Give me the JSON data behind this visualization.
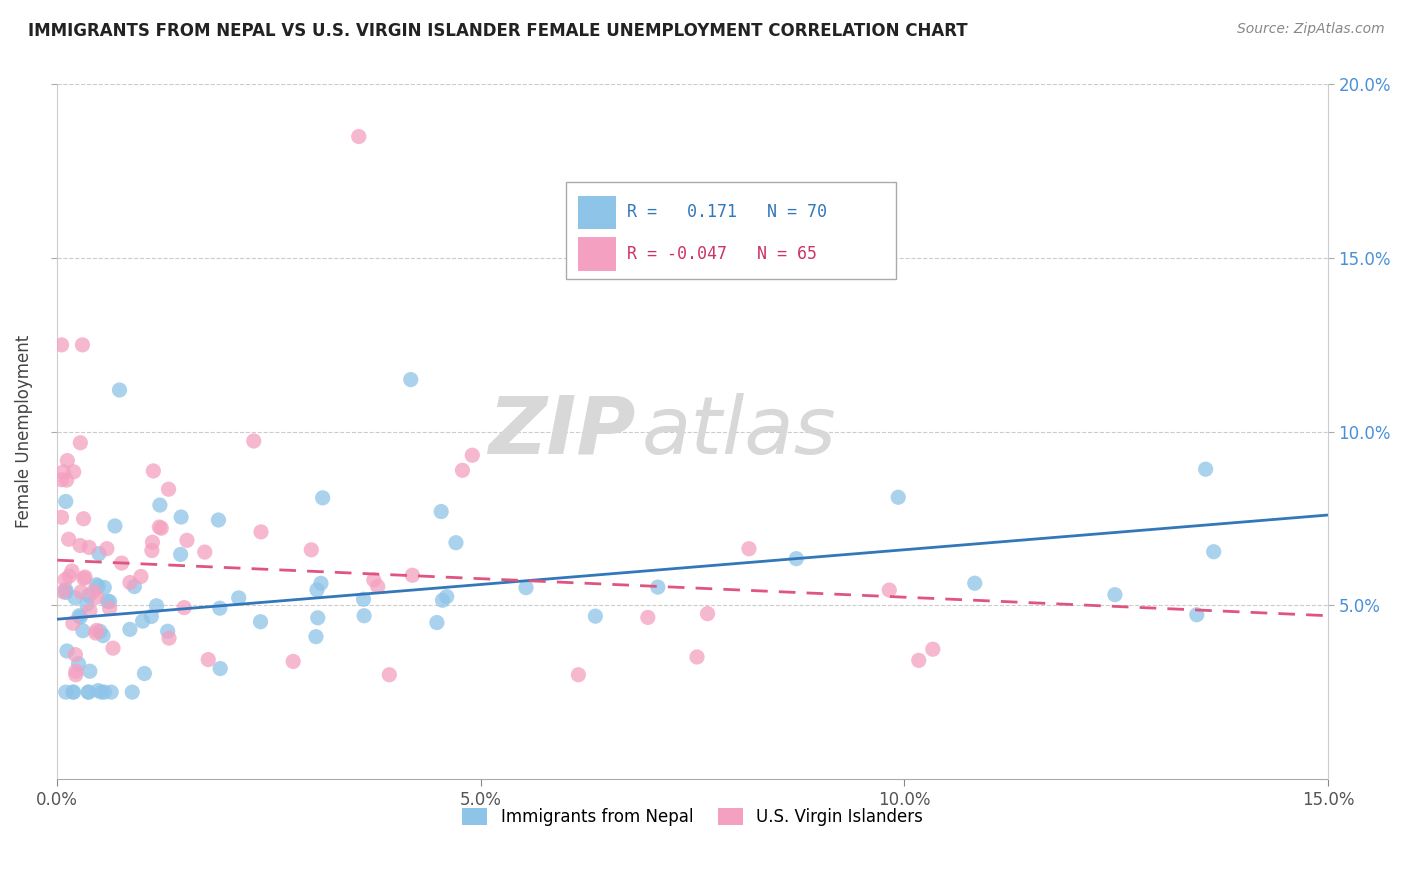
{
  "title": "IMMIGRANTS FROM NEPAL VS U.S. VIRGIN ISLANDER FEMALE UNEMPLOYMENT CORRELATION CHART",
  "source": "Source: ZipAtlas.com",
  "ylabel": "Female Unemployment",
  "series1_label": "Immigrants from Nepal",
  "series2_label": "U.S. Virgin Islanders",
  "series1_color": "#8ec4e8",
  "series2_color": "#f4a0c0",
  "series1_line_color": "#3377bb",
  "series2_line_color": "#e05580",
  "r1": 0.171,
  "n1": 70,
  "r2": -0.047,
  "n2": 65,
  "xlim": [
    0.0,
    0.15
  ],
  "ylim": [
    0.0,
    0.2
  ],
  "xticks": [
    0.0,
    0.05,
    0.1,
    0.15
  ],
  "yticks": [
    0.05,
    0.1,
    0.15,
    0.2
  ],
  "xtick_labels": [
    "0.0%",
    "5.0%",
    "10.0%",
    "15.0%"
  ],
  "ytick_labels": [
    "5.0%",
    "10.0%",
    "15.0%",
    "20.0%"
  ],
  "watermark_zip": "ZIP",
  "watermark_atlas": "atlas",
  "nepal_trendline_x": [
    0.0,
    0.15
  ],
  "nepal_trendline_y": [
    0.046,
    0.076
  ],
  "virgin_trendline_x": [
    0.0,
    0.15
  ],
  "virgin_trendline_y": [
    0.063,
    0.047
  ],
  "background_color": "#ffffff",
  "grid_color": "#cccccc",
  "title_color": "#222222"
}
